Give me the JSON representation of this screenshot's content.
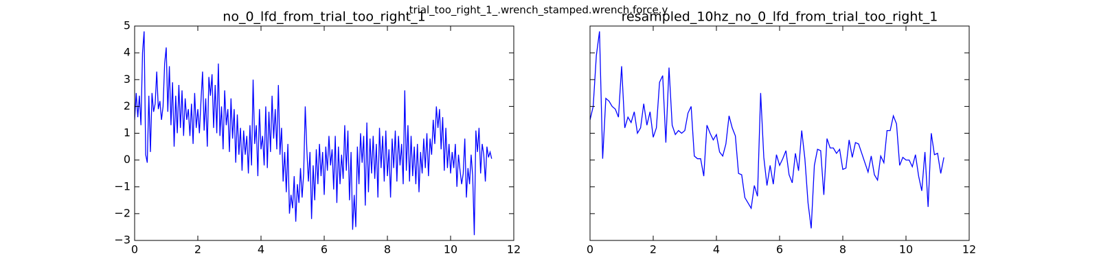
{
  "title": "trial_too_right_1_.wrench_stamped.wrench.force.y",
  "chart_data": [
    {
      "type": "line",
      "title": "no_0_lfd_from_trial_too_right_1",
      "color": "#0000ff",
      "x": [
        0,
        0.05,
        0.1,
        0.15,
        0.2,
        0.25,
        0.3,
        0.35,
        0.4,
        0.45,
        0.5,
        0.55,
        0.6,
        0.65,
        0.7,
        0.75,
        0.8,
        0.85,
        0.9,
        0.95,
        1,
        1.05,
        1.1,
        1.15,
        1.2,
        1.25,
        1.3,
        1.35,
        1.4,
        1.45,
        1.5,
        1.55,
        1.6,
        1.65,
        1.7,
        1.75,
        1.8,
        1.85,
        1.9,
        1.95,
        2,
        2.05,
        2.1,
        2.15,
        2.2,
        2.25,
        2.3,
        2.35,
        2.4,
        2.45,
        2.5,
        2.55,
        2.6,
        2.65,
        2.7,
        2.75,
        2.8,
        2.85,
        2.9,
        2.95,
        3,
        3.05,
        3.1,
        3.15,
        3.2,
        3.25,
        3.3,
        3.35,
        3.4,
        3.45,
        3.5,
        3.55,
        3.6,
        3.65,
        3.7,
        3.75,
        3.8,
        3.85,
        3.9,
        3.95,
        4,
        4.05,
        4.1,
        4.15,
        4.2,
        4.25,
        4.3,
        4.35,
        4.4,
        4.45,
        4.5,
        4.55,
        4.6,
        4.65,
        4.7,
        4.75,
        4.8,
        4.85,
        4.9,
        4.95,
        5,
        5.05,
        5.1,
        5.15,
        5.2,
        5.25,
        5.3,
        5.35,
        5.4,
        5.45,
        5.5,
        5.55,
        5.6,
        5.65,
        5.7,
        5.75,
        5.8,
        5.85,
        5.9,
        5.95,
        6,
        6.05,
        6.1,
        6.15,
        6.2,
        6.25,
        6.3,
        6.35,
        6.4,
        6.45,
        6.5,
        6.55,
        6.6,
        6.65,
        6.7,
        6.75,
        6.8,
        6.85,
        6.9,
        6.95,
        7,
        7.05,
        7.1,
        7.15,
        7.2,
        7.25,
        7.3,
        7.35,
        7.4,
        7.45,
        7.5,
        7.55,
        7.6,
        7.65,
        7.7,
        7.75,
        7.8,
        7.85,
        7.9,
        7.95,
        8,
        8.05,
        8.1,
        8.15,
        8.2,
        8.25,
        8.3,
        8.35,
        8.4,
        8.45,
        8.5,
        8.55,
        8.6,
        8.65,
        8.7,
        8.75,
        8.8,
        8.85,
        8.9,
        8.95,
        9,
        9.05,
        9.1,
        9.15,
        9.2,
        9.25,
        9.3,
        9.35,
        9.4,
        9.45,
        9.5,
        9.55,
        9.6,
        9.65,
        9.7,
        9.75,
        9.8,
        9.85,
        9.9,
        9.95,
        10,
        10.05,
        10.1,
        10.15,
        10.2,
        10.25,
        10.3,
        10.35,
        10.4,
        10.45,
        10.5,
        10.55,
        10.6,
        10.65,
        10.7,
        10.75,
        10.8,
        10.85,
        10.9,
        10.95,
        11,
        11.05,
        11.1,
        11.15,
        11.2,
        11.25,
        11.3
      ],
      "values": [
        1.5,
        2.5,
        1.6,
        2.4,
        1.3,
        4.0,
        4.8,
        0.2,
        -0.1,
        2.4,
        0.3,
        2.5,
        1.8,
        2.1,
        3.3,
        1.9,
        2.2,
        1.5,
        2.0,
        3.6,
        4.2,
        1.8,
        3.5,
        1.3,
        2.9,
        0.5,
        2.4,
        1.0,
        2.8,
        1.2,
        2.6,
        0.9,
        2.3,
        1.5,
        1.9,
        0.9,
        2.1,
        0.6,
        2.5,
        1.2,
        1.9,
        1.0,
        2.2,
        3.3,
        1.1,
        2.3,
        0.5,
        3.1,
        2.4,
        3.2,
        1.2,
        2.8,
        1.0,
        3.6,
        0.9,
        2.0,
        0.4,
        2.6,
        1.3,
        1.9,
        0.3,
        2.3,
        0.8,
        1.9,
        -0.1,
        1.7,
        0.2,
        1.2,
        -0.4,
        1.1,
        0.2,
        0.9,
        -0.5,
        1.3,
        -0.2,
        3.0,
        0.6,
        1.3,
        -0.6,
        1.9,
        0.4,
        0.9,
        -0.2,
        2.0,
        -0.3,
        1.8,
        0.3,
        2.4,
        0.8,
        1.9,
        0.4,
        2.8,
        0.2,
        1.2,
        -0.8,
        0.3,
        -1.2,
        0.6,
        -2.0,
        -1.3,
        -1.8,
        -0.6,
        -2.3,
        -0.9,
        -1.6,
        -0.3,
        -1.4,
        -0.5,
        2.0,
        0.4,
        -0.8,
        0.3,
        -2.2,
        -0.2,
        -1.5,
        0.4,
        -0.9,
        0.6,
        -0.6,
        0.3,
        -1.3,
        0.5,
        -0.4,
        0.9,
        -0.2,
        0.4,
        -1.1,
        0.9,
        -1.6,
        0.5,
        -0.9,
        0.2,
        -0.7,
        1.3,
        -0.4,
        1.1,
        -1.5,
        0.3,
        -2.6,
        -1.3,
        -2.5,
        0.5,
        -0.9,
        1.0,
        -0.1,
        0.9,
        -1.7,
        1.4,
        -1.2,
        0.8,
        -0.5,
        0.9,
        -0.7,
        0.6,
        -1.4,
        1.2,
        -0.3,
        0.9,
        -0.8,
        1.1,
        -0.6,
        0.4,
        -1.4,
        0.8,
        -0.3,
        1.1,
        -0.8,
        0.9,
        -0.2,
        0.6,
        -0.9,
        2.6,
        -0.4,
        1.3,
        -0.8,
        0.9,
        -0.6,
        0.5,
        -0.9,
        0.6,
        -1.2,
        0.3,
        -0.5,
        0.8,
        -0.3,
        1.0,
        -0.6,
        0.8,
        0.2,
        1.5,
        0.6,
        2.0,
        1.2,
        1.9,
        0.4,
        1.6,
        -0.4,
        1.2,
        -0.3,
        0.6,
        -0.5,
        0.3,
        -0.3,
        0.6,
        -1.0,
        0.2,
        -0.4,
        -0.9,
        -0.5,
        0.8,
        -1.4,
        -0.3,
        -0.9,
        0.2,
        -0.6,
        -2.8,
        1.1,
        0.3,
        1.2,
        -0.5,
        0.6,
        0.2,
        -0.8,
        0.5,
        0.1,
        0.3,
        0.05
      ],
      "xlim": [
        0,
        12
      ],
      "xticks": [
        0,
        2,
        4,
        6,
        8,
        10,
        12
      ],
      "ylim": [
        -3,
        5
      ],
      "yticks": [
        {
          "value": -3,
          "label": "−3"
        },
        {
          "value": -2,
          "label": "−2"
        },
        {
          "value": -1,
          "label": "−1"
        },
        0,
        1,
        2,
        3,
        4,
        5
      ]
    },
    {
      "type": "line",
      "title": "resampled_10hz_no_0_lfd_from_trial_too_right_1",
      "color": "#0000ff",
      "sharey": true,
      "x": [
        0,
        0.1,
        0.2,
        0.3,
        0.4,
        0.5,
        0.6,
        0.7,
        0.8,
        0.9,
        1,
        1.1,
        1.2,
        1.3,
        1.4,
        1.5,
        1.6,
        1.7,
        1.8,
        1.9,
        2,
        2.1,
        2.2,
        2.3,
        2.4,
        2.5,
        2.6,
        2.7,
        2.8,
        2.9,
        3,
        3.1,
        3.2,
        3.3,
        3.4,
        3.5,
        3.6,
        3.7,
        3.8,
        3.9,
        4,
        4.1,
        4.2,
        4.3,
        4.4,
        4.5,
        4.6,
        4.7,
        4.8,
        4.9,
        5,
        5.1,
        5.2,
        5.3,
        5.4,
        5.5,
        5.6,
        5.7,
        5.8,
        5.9,
        6,
        6.1,
        6.2,
        6.3,
        6.4,
        6.5,
        6.6,
        6.7,
        6.8,
        6.9,
        7,
        7.1,
        7.2,
        7.3,
        7.4,
        7.5,
        7.6,
        7.7,
        7.8,
        7.9,
        8,
        8.1,
        8.2,
        8.3,
        8.4,
        8.5,
        8.6,
        8.7,
        8.8,
        8.9,
        9,
        9.1,
        9.2,
        9.3,
        9.4,
        9.5,
        9.6,
        9.7,
        9.8,
        9.9,
        10,
        10.1,
        10.2,
        10.3,
        10.4,
        10.5,
        10.6,
        10.7,
        10.8,
        10.9,
        11,
        11.1,
        11.2
      ],
      "values": [
        1.5,
        2.0,
        3.9,
        4.8,
        0.05,
        2.3,
        2.2,
        2.0,
        1.9,
        1.6,
        3.5,
        1.2,
        1.6,
        1.4,
        1.8,
        1.0,
        1.2,
        2.1,
        1.3,
        1.8,
        0.85,
        1.2,
        2.9,
        3.15,
        0.65,
        3.45,
        1.3,
        0.95,
        1.1,
        1.0,
        1.1,
        1.75,
        2.0,
        0.15,
        0.05,
        0.05,
        -0.6,
        1.3,
        1.0,
        0.75,
        0.95,
        0.3,
        0.15,
        0.6,
        1.65,
        1.2,
        0.9,
        -0.5,
        -0.55,
        -1.4,
        -1.6,
        -1.8,
        -0.95,
        -1.35,
        2.5,
        0.1,
        -0.95,
        -0.2,
        -0.9,
        0.2,
        -0.2,
        0.05,
        0.35,
        -0.55,
        -0.85,
        0.25,
        -0.4,
        1.1,
        0.05,
        -1.6,
        -2.55,
        -0.2,
        0.4,
        0.35,
        -1.3,
        0.8,
        0.45,
        0.45,
        0.25,
        0.4,
        -0.35,
        -0.3,
        0.75,
        0.1,
        0.65,
        0.6,
        0.25,
        -0.1,
        -0.45,
        0.15,
        -0.55,
        -0.75,
        0.15,
        -0.1,
        1.1,
        1.1,
        1.65,
        1.35,
        -0.2,
        0.1,
        0.0,
        0.0,
        -0.25,
        0.2,
        -0.6,
        -1.15,
        0.3,
        -1.75,
        1.0,
        0.2,
        0.25,
        -0.5,
        0.1
      ],
      "xlim": [
        0,
        12
      ],
      "xticks": [
        0,
        2,
        4,
        6,
        8,
        10,
        12
      ]
    }
  ]
}
